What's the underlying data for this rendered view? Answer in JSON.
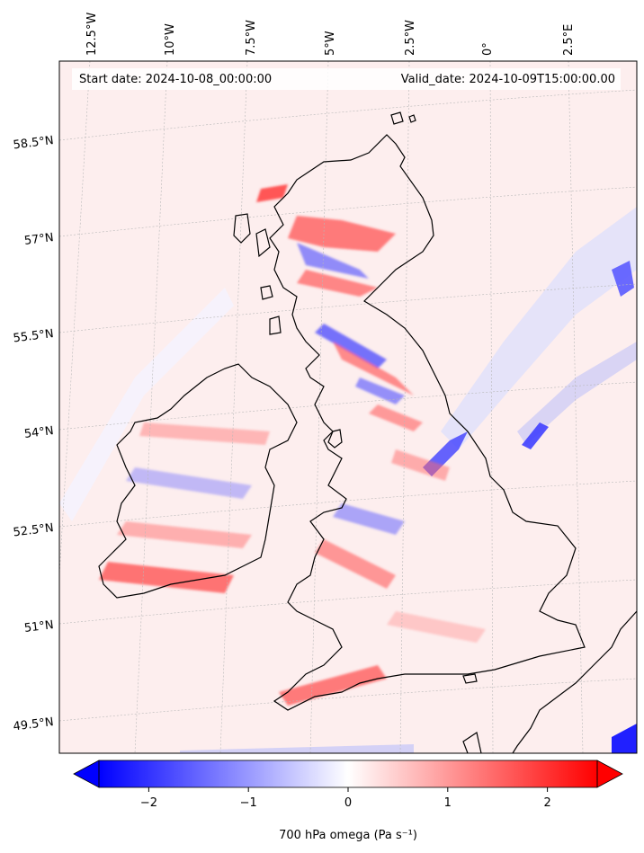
{
  "map": {
    "start_date": "Start date: 2024-10-08_00:00:00",
    "valid_date": "Valid_date: 2024-10-09T15:00:00.00",
    "lon_labels": [
      "12.5°W",
      "10°W",
      "7.5°W",
      "5°W",
      "2.5°W",
      "0°",
      "2.5°E"
    ],
    "lat_labels": [
      "58.5°N",
      "57°N",
      "55.5°N",
      "54°N",
      "52.5°N",
      "51°N",
      "49.5°N"
    ],
    "field_colormap": "blue-white-red (bwr)"
  },
  "colorbar": {
    "label": "700 hPa omega (Pa s⁻¹)",
    "ticks": [
      "−2",
      "−1",
      "0",
      "1",
      "2"
    ],
    "range": [
      -2.5,
      2.5
    ],
    "extend": "both",
    "colors": {
      "low": "#0000ff",
      "mid": "#ffffff",
      "high": "#ff0000"
    }
  }
}
